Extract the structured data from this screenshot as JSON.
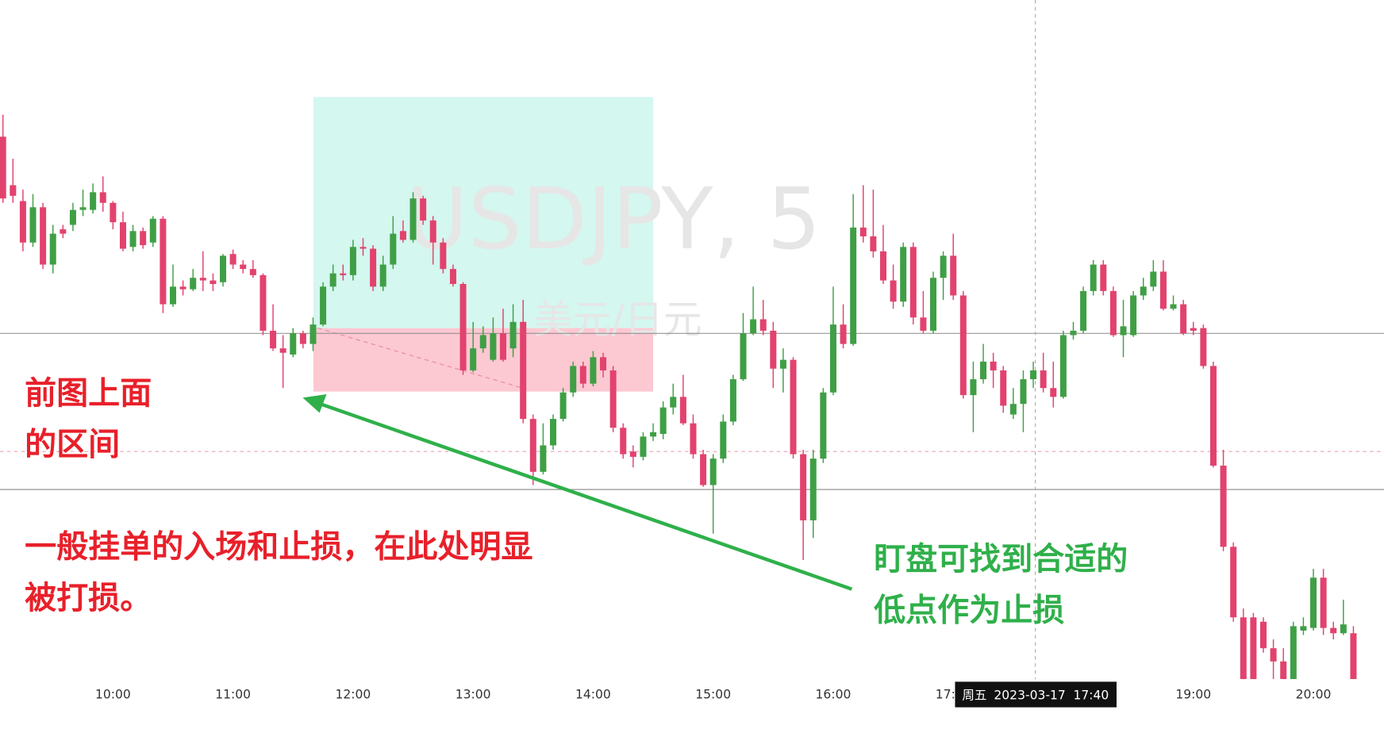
{
  "chart_data": {
    "type": "candlestick",
    "watermark": "USDJPY, 5",
    "watermark_sub": "美元/日元",
    "up_color": "#3f9f45",
    "down_color": "#e2426e",
    "ylim": [
      230,
      1000
    ],
    "categories": [
      null,
      null,
      null,
      null,
      null,
      null,
      null,
      null,
      null,
      null,
      null,
      "10:00",
      null,
      null,
      null,
      null,
      null,
      null,
      null,
      null,
      null,
      null,
      null,
      "11:00",
      null,
      null,
      null,
      null,
      null,
      null,
      null,
      null,
      null,
      null,
      null,
      "12:00",
      null,
      null,
      null,
      null,
      null,
      null,
      null,
      null,
      null,
      null,
      null,
      "13:00",
      null,
      null,
      null,
      null,
      null,
      null,
      null,
      null,
      null,
      null,
      null,
      "14:00",
      null,
      null,
      null,
      null,
      null,
      null,
      null,
      null,
      null,
      null,
      null,
      "15:00",
      null,
      null,
      null,
      null,
      null,
      null,
      null,
      null,
      null,
      null,
      null,
      "16:00",
      null,
      null,
      null,
      null,
      null,
      null,
      null,
      null,
      null,
      null,
      null,
      "17:00",
      null,
      null,
      null,
      null,
      null,
      null,
      null,
      null,
      null,
      null,
      null,
      null,
      null,
      null,
      null,
      null,
      null,
      null,
      null,
      null,
      null,
      null,
      null,
      "19:00",
      null,
      null,
      null,
      null,
      null,
      null,
      null,
      null,
      null,
      null,
      null,
      "20:00",
      null,
      null,
      null,
      null
    ],
    "values": [
      [
        845,
        870,
        770,
        775
      ],
      [
        790,
        820,
        770,
        778
      ],
      [
        772,
        785,
        715,
        725
      ],
      [
        725,
        780,
        720,
        765
      ],
      [
        765,
        770,
        695,
        700
      ],
      [
        700,
        745,
        690,
        735
      ],
      [
        740,
        745,
        730,
        735
      ],
      [
        745,
        770,
        738,
        762
      ],
      [
        762,
        785,
        755,
        765
      ],
      [
        762,
        792,
        758,
        782
      ],
      [
        782,
        800,
        760,
        770
      ],
      [
        770,
        772,
        740,
        748
      ],
      [
        748,
        760,
        715,
        718
      ],
      [
        720,
        745,
        715,
        738
      ],
      [
        738,
        742,
        718,
        722
      ],
      [
        725,
        755,
        720,
        752
      ],
      [
        752,
        755,
        645,
        655
      ],
      [
        655,
        700,
        652,
        675
      ],
      [
        675,
        682,
        665,
        672
      ],
      [
        672,
        695,
        670,
        685
      ],
      [
        685,
        715,
        670,
        682
      ],
      [
        682,
        690,
        670,
        678
      ],
      [
        680,
        712,
        675,
        710
      ],
      [
        712,
        717,
        695,
        700
      ],
      [
        700,
        705,
        690,
        695
      ],
      [
        695,
        705,
        685,
        688
      ],
      [
        688,
        690,
        620,
        625
      ],
      [
        625,
        655,
        602,
        605
      ],
      [
        605,
        620,
        560,
        600
      ],
      [
        598,
        628,
        595,
        622
      ],
      [
        622,
        625,
        605,
        610
      ],
      [
        610,
        640,
        602,
        632
      ],
      [
        632,
        680,
        630,
        675
      ],
      [
        675,
        700,
        670,
        690
      ],
      [
        690,
        700,
        682,
        688
      ],
      [
        688,
        728,
        682,
        720
      ],
      [
        720,
        730,
        710,
        718
      ],
      [
        718,
        722,
        670,
        675
      ],
      [
        675,
        710,
        670,
        700
      ],
      [
        700,
        755,
        695,
        735
      ],
      [
        738,
        750,
        725,
        728
      ],
      [
        728,
        782,
        725,
        775
      ],
      [
        775,
        778,
        745,
        750
      ],
      [
        750,
        755,
        700,
        725
      ],
      [
        725,
        730,
        690,
        695
      ],
      [
        695,
        700,
        675,
        678
      ],
      [
        678,
        680,
        575,
        580
      ],
      [
        580,
        635,
        578,
        605
      ],
      [
        605,
        630,
        600,
        620
      ],
      [
        592,
        640,
        590,
        622
      ],
      [
        622,
        650,
        590,
        592
      ],
      [
        605,
        655,
        595,
        635
      ],
      [
        635,
        660,
        520,
        525
      ],
      [
        525,
        530,
        450,
        465
      ],
      [
        465,
        520,
        462,
        495
      ],
      [
        495,
        530,
        490,
        525
      ],
      [
        525,
        560,
        522,
        555
      ],
      [
        555,
        590,
        550,
        585
      ],
      [
        585,
        590,
        560,
        565
      ],
      [
        565,
        602,
        562,
        595
      ],
      [
        595,
        600,
        572,
        580
      ],
      [
        580,
        585,
        510,
        515
      ],
      [
        515,
        520,
        480,
        485
      ],
      [
        488,
        495,
        470,
        482
      ],
      [
        482,
        510,
        478,
        505
      ],
      [
        505,
        520,
        500,
        510
      ],
      [
        508,
        545,
        502,
        538
      ],
      [
        538,
        565,
        530,
        550
      ],
      [
        550,
        575,
        518,
        520
      ],
      [
        520,
        530,
        480,
        485
      ],
      [
        485,
        490,
        448,
        450
      ],
      [
        450,
        485,
        395,
        480
      ],
      [
        480,
        530,
        475,
        522
      ],
      [
        522,
        575,
        518,
        570
      ],
      [
        570,
        645,
        568,
        622
      ],
      [
        622,
        675,
        620,
        638
      ],
      [
        638,
        660,
        620,
        625
      ],
      [
        625,
        635,
        560,
        582
      ],
      [
        582,
        605,
        555,
        592
      ],
      [
        592,
        595,
        480,
        485
      ],
      [
        485,
        490,
        365,
        410
      ],
      [
        410,
        490,
        390,
        480
      ],
      [
        480,
        560,
        475,
        555
      ],
      [
        555,
        675,
        552,
        632
      ],
      [
        632,
        655,
        605,
        610
      ],
      [
        610,
        780,
        608,
        742
      ],
      [
        742,
        790,
        725,
        732
      ],
      [
        732,
        785,
        708,
        715
      ],
      [
        715,
        745,
        678,
        682
      ],
      [
        682,
        700,
        650,
        658
      ],
      [
        658,
        725,
        652,
        720
      ],
      [
        720,
        725,
        632,
        640
      ],
      [
        640,
        670,
        622,
        625
      ],
      [
        625,
        692,
        622,
        685
      ],
      [
        685,
        715,
        660,
        710
      ],
      [
        710,
        735,
        660,
        665
      ],
      [
        665,
        670,
        548,
        552
      ],
      [
        552,
        590,
        510,
        570
      ],
      [
        570,
        610,
        565,
        590
      ],
      [
        590,
        600,
        560,
        580
      ],
      [
        580,
        585,
        532,
        540
      ],
      [
        530,
        560,
        525,
        542
      ],
      [
        542,
        580,
        510,
        570
      ],
      [
        570,
        590,
        560,
        580
      ],
      [
        580,
        600,
        555,
        560
      ],
      [
        560,
        590,
        538,
        550
      ],
      [
        550,
        625,
        548,
        620
      ],
      [
        620,
        635,
        615,
        625
      ],
      [
        625,
        675,
        622,
        670
      ],
      [
        670,
        705,
        665,
        700
      ],
      [
        700,
        705,
        665,
        670
      ],
      [
        670,
        675,
        618,
        620
      ],
      [
        620,
        660,
        595,
        630
      ],
      [
        620,
        670,
        618,
        665
      ],
      [
        665,
        685,
        660,
        675
      ],
      [
        675,
        705,
        670,
        692
      ],
      [
        692,
        705,
        648,
        650
      ],
      [
        650,
        665,
        648,
        655
      ],
      [
        655,
        660,
        620,
        622
      ],
      [
        628,
        635,
        620,
        625
      ],
      [
        628,
        632,
        582,
        585
      ],
      [
        585,
        590,
        470,
        472
      ],
      [
        472,
        490,
        375,
        380
      ],
      [
        380,
        385,
        295,
        300
      ],
      [
        300,
        310,
        225,
        230
      ],
      [
        300,
        305,
        225,
        230
      ],
      [
        295,
        300,
        260,
        265
      ],
      [
        265,
        275,
        230,
        250
      ],
      [
        250,
        265,
        225,
        230
      ],
      [
        230,
        295,
        228,
        290
      ],
      [
        285,
        300,
        280,
        290
      ],
      [
        288,
        355,
        285,
        345
      ],
      [
        345,
        355,
        280,
        288
      ],
      [
        288,
        295,
        275,
        282
      ],
      [
        282,
        320,
        280,
        292
      ],
      [
        282,
        290,
        225,
        230
      ]
    ],
    "crosshair_label": {
      "day": "周五",
      "date": "2023-03-17",
      "time": "17:40"
    },
    "annotations": [
      {
        "lines": [
          "前图上面",
          "的区间"
        ],
        "color": "#e8202a"
      },
      {
        "lines": [
          "一般挂单的入场和止损，在此处明显",
          "被打损。"
        ],
        "color": "#e8202a"
      },
      {
        "lines": [
          "盯盘可找到合适的",
          "低点作为止损"
        ],
        "color": "#2fb04a"
      }
    ]
  }
}
